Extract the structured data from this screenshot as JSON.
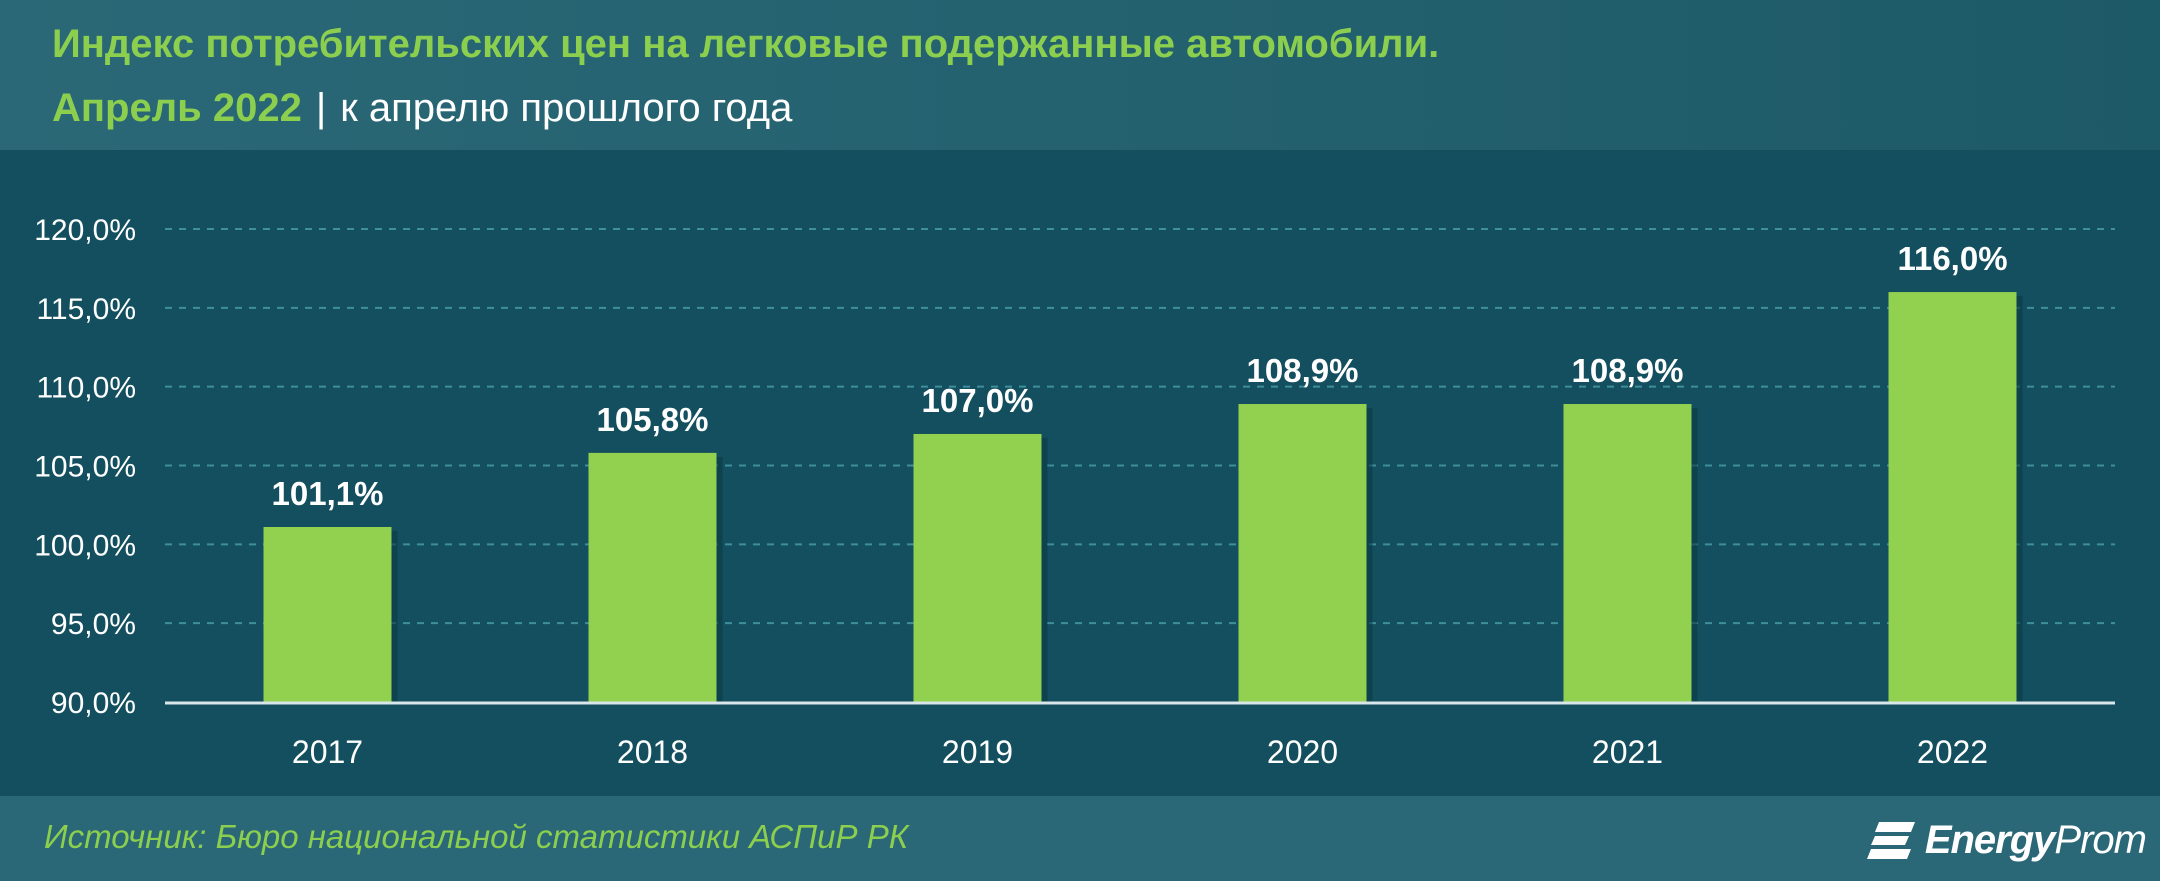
{
  "header": {
    "title": "Индекс потребительских цен на легковые подержанные автомобили.",
    "subtitle_date": "Апрель 2022",
    "subtitle_separator": "|",
    "subtitle_rest": "к апрелю прошлого года"
  },
  "footer": {
    "source": "Источник: Бюро национальной статистики АСПиР РК",
    "logo_bold": "Energy",
    "logo_light": "Prom"
  },
  "colors": {
    "bar": "#92d050",
    "title_accent": "#8ccf4e",
    "background": "#134f5e",
    "grid": "#3f8e9c"
  },
  "chart_data": {
    "type": "bar",
    "categories": [
      "2017",
      "2018",
      "2019",
      "2020",
      "2021",
      "2022"
    ],
    "values": [
      101.1,
      105.8,
      107.0,
      108.9,
      108.9,
      116.0
    ],
    "value_labels": [
      "101,1%",
      "105,8%",
      "107,0%",
      "108,9%",
      "108,9%",
      "116,0%"
    ],
    "y_ticks": [
      90,
      95,
      100,
      105,
      110,
      115,
      120
    ],
    "y_tick_labels": [
      "90,0%",
      "95,0%",
      "100,0%",
      "105,0%",
      "110,0%",
      "115,0%",
      "120,0%"
    ],
    "ylim": [
      90,
      120
    ],
    "grid": true,
    "legend": false
  }
}
